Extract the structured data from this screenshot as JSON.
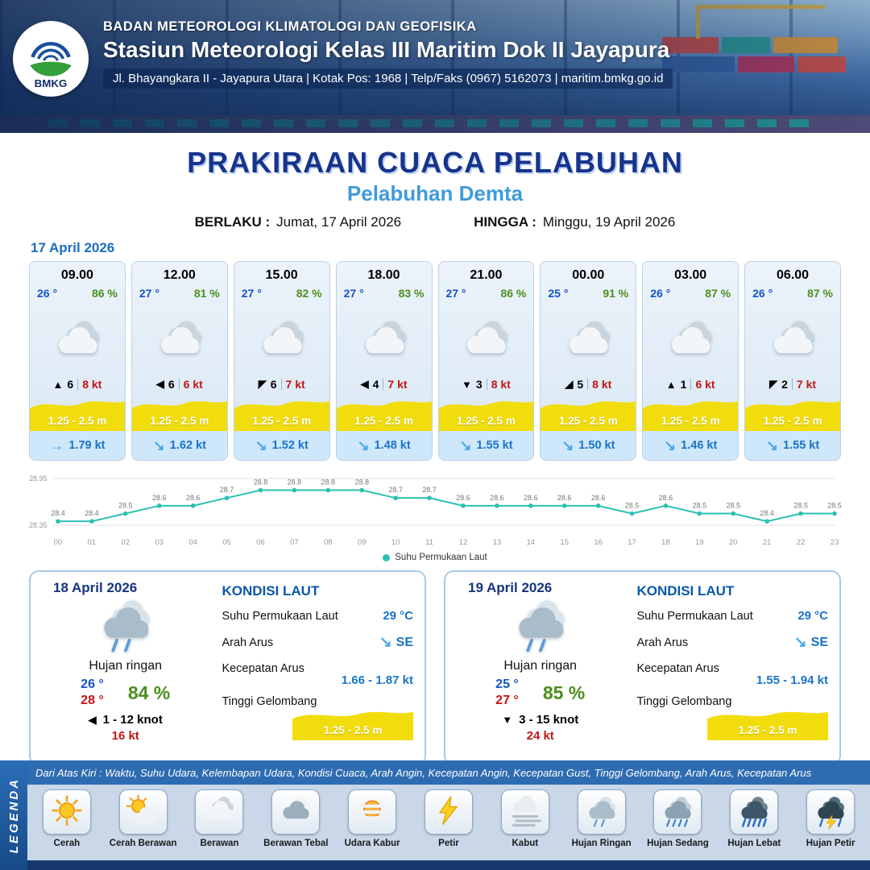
{
  "header": {
    "logo_text": "BMKG",
    "agency": "BADAN METEOROLOGI KLIMATOLOGI DAN GEOFISIKA",
    "station": "Stasiun Meteorologi Kelas III Maritim Dok II Jayapura",
    "address": "Jl. Bhayangkara II - Jayapura Utara | Kotak Pos: 1968 | Telp/Faks (0967) 5162073 | maritim.bmkg.go.id"
  },
  "title": {
    "main": "PRAKIRAAN CUACA PELABUHAN",
    "subtitle": "Pelabuhan Demta",
    "berlaku_label": "BERLAKU :",
    "berlaku_value": "Jumat, 17 April 2026",
    "hingga_label": "HINGGA :",
    "hingga_value": "Minggu, 19 April 2026"
  },
  "forecast_date": "17 April 2026",
  "hourly": [
    {
      "time": "09.00",
      "temp": "26 °",
      "humidity": "86 %",
      "wind_dir": "▲",
      "wind_speed": "6",
      "gust": "8 kt",
      "wave": "1.25 - 2.5 m",
      "current_dir": "→",
      "current": "1.79 kt"
    },
    {
      "time": "12.00",
      "temp": "27 °",
      "humidity": "81 %",
      "wind_dir": "◀",
      "wind_speed": "6",
      "gust": "6 kt",
      "wave": "1.25 - 2.5 m",
      "current_dir": "↘",
      "current": "1.62 kt"
    },
    {
      "time": "15.00",
      "temp": "27 °",
      "humidity": "82 %",
      "wind_dir": "◤",
      "wind_speed": "6",
      "gust": "7 kt",
      "wave": "1.25 - 2.5 m",
      "current_dir": "↘",
      "current": "1.52 kt"
    },
    {
      "time": "18.00",
      "temp": "27 °",
      "humidity": "83 %",
      "wind_dir": "◀",
      "wind_speed": "4",
      "gust": "7 kt",
      "wave": "1.25 - 2.5 m",
      "current_dir": "↘",
      "current": "1.48 kt"
    },
    {
      "time": "21.00",
      "temp": "27 °",
      "humidity": "86 %",
      "wind_dir": "▼",
      "wind_speed": "3",
      "gust": "8 kt",
      "wave": "1.25 - 2.5 m",
      "current_dir": "↘",
      "current": "1.55 kt"
    },
    {
      "time": "00.00",
      "temp": "25 °",
      "humidity": "91 %",
      "wind_dir": "◢",
      "wind_speed": "5",
      "gust": "8 kt",
      "wave": "1.25 - 2.5 m",
      "current_dir": "↘",
      "current": "1.50 kt"
    },
    {
      "time": "03.00",
      "temp": "26 °",
      "humidity": "87 %",
      "wind_dir": "▲",
      "wind_speed": "1",
      "gust": "6 kt",
      "wave": "1.25 - 2.5 m",
      "current_dir": "↘",
      "current": "1.46 kt"
    },
    {
      "time": "06.00",
      "temp": "26 °",
      "humidity": "87 %",
      "wind_dir": "◤",
      "wind_speed": "2",
      "gust": "7 kt",
      "wave": "1.25 - 2.5 m",
      "current_dir": "↘",
      "current": "1.55 kt"
    }
  ],
  "chart_data": {
    "type": "line",
    "series_name": "Suhu Permukaan Laut",
    "x": [
      "00",
      "01",
      "02",
      "03",
      "04",
      "05",
      "06",
      "07",
      "08",
      "09",
      "10",
      "11",
      "12",
      "13",
      "14",
      "15",
      "16",
      "17",
      "18",
      "19",
      "20",
      "21",
      "22",
      "23"
    ],
    "values": [
      28.4,
      28.4,
      28.5,
      28.6,
      28.6,
      28.7,
      28.8,
      28.8,
      28.8,
      28.8,
      28.7,
      28.7,
      28.6,
      28.6,
      28.6,
      28.6,
      28.6,
      28.5,
      28.6,
      28.5,
      28.5,
      28.4,
      28.5,
      28.5
    ],
    "ylim": [
      28.35,
      28.95
    ],
    "y_ticks": [
      "28.95",
      "28.35"
    ],
    "line_color": "#2cc1b2",
    "grid": true,
    "legend_position": "bottom"
  },
  "daily": [
    {
      "date": "18 April 2026",
      "condition": "Hujan ringan",
      "temp_min": "26 °",
      "temp_max": "28 °",
      "humidity": "84 %",
      "wind_dir": "◀",
      "wind_range": "1 - 12 knot",
      "gust": "16 kt",
      "sea": {
        "heading": "KONDISI LAUT",
        "sst_label": "Suhu Permukaan Laut",
        "sst": "29 °C",
        "arah_label": "Arah Arus",
        "arah_arrow": "↘",
        "arah": "SE",
        "kecepatan_label": "Kecepatan Arus",
        "kecepatan": "1.66 -  1.87 kt",
        "gelombang_label": "Tinggi Gelombang",
        "gelombang": "1.25 - 2.5 m"
      }
    },
    {
      "date": "19 April 2026",
      "condition": "Hujan ringan",
      "temp_min": "25 °",
      "temp_max": "27 °",
      "humidity": "85 %",
      "wind_dir": "▼",
      "wind_range": "3 - 15 knot",
      "gust": "24 kt",
      "sea": {
        "heading": "KONDISI LAUT",
        "sst_label": "Suhu Permukaan Laut",
        "sst": "29 °C",
        "arah_label": "Arah Arus",
        "arah_arrow": "↘",
        "arah": "SE",
        "kecepatan_label": "Kecepatan Arus",
        "kecepatan": "1.55  - 1.94 kt",
        "gelombang_label": "Tinggi Gelombang",
        "gelombang": "1.25 - 2.5 m"
      }
    }
  ],
  "legend": {
    "vertical_label": "LEGENDA",
    "header_note": "Dari Atas Kiri : Waktu, Suhu Udara, Kelembapan Udara, Kondisi Cuaca, Arah Angin, Kecepatan Angin, Kecepatan Gust, Tinggi Gelombang, Arah Arus, Kecepatan Arus",
    "items": [
      {
        "label": "Cerah",
        "icon": "sun"
      },
      {
        "label": "Cerah Berawan",
        "icon": "sun-cloud"
      },
      {
        "label": "Berawan",
        "icon": "cloud"
      },
      {
        "label": "Berawan Tebal",
        "icon": "clouds"
      },
      {
        "label": "Udara Kabur",
        "icon": "hazy-sun"
      },
      {
        "label": "Petir",
        "icon": "lightning"
      },
      {
        "label": "Kabut",
        "icon": "fog"
      },
      {
        "label": "Hujan Ringan",
        "icon": "light-rain"
      },
      {
        "label": "Hujan Sedang",
        "icon": "moderate-rain"
      },
      {
        "label": "Hujan Lebat",
        "icon": "heavy-rain"
      },
      {
        "label": "Hujan Petir",
        "icon": "thunderstorm"
      }
    ]
  },
  "colors": {
    "navy": "#16348c",
    "temp_blue": "#1553c8",
    "humidity_green": "#4b8f1d",
    "gust_red": "#c21616",
    "wave_yellow": "#f2dd0c",
    "sst_teal": "#2cc1b2",
    "current_blue": "#1a74c8",
    "subtitle_blue": "#3f9bd8"
  }
}
